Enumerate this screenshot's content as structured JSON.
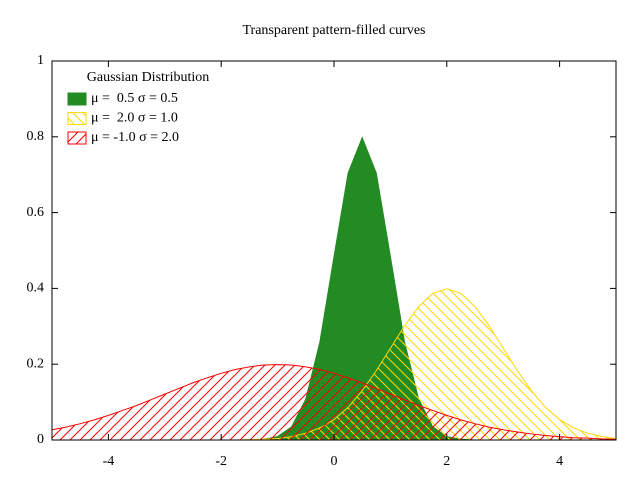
{
  "chart_data": {
    "type": "area",
    "title": "Transparent pattern-filled curves",
    "legend_title": "Gaussian Distribution",
    "legend": "top-left",
    "x": [
      -5,
      -4.75,
      -4.5,
      -4.25,
      -4,
      -3.75,
      -3.5,
      -3.25,
      -3,
      -2.75,
      -2.5,
      -2.25,
      -2,
      -1.75,
      -1.5,
      -1.25,
      -1,
      -0.75,
      -0.5,
      -0.25,
      0,
      0.25,
      0.5,
      0.75,
      1,
      1.25,
      1.5,
      1.75,
      2,
      2.25,
      2.5,
      2.75,
      3,
      3.25,
      3.5,
      3.75,
      4,
      4.25,
      4.5,
      4.75,
      5
    ],
    "series": [
      {
        "name": "μ =  0.5 σ = 0.5",
        "color": "#228b22",
        "fill": "solid",
        "values": [
          0,
          0,
          0,
          0,
          0,
          0,
          0,
          0,
          0,
          0,
          0,
          0,
          0,
          0,
          0,
          0.002,
          0.009,
          0.035,
          0.108,
          0.259,
          0.484,
          0.704,
          0.798,
          0.704,
          0.484,
          0.259,
          0.108,
          0.035,
          0.009,
          0.002,
          0,
          0,
          0,
          0,
          0,
          0,
          0,
          0,
          0,
          0,
          0
        ]
      },
      {
        "name": "μ =  2.0 σ = 1.0",
        "color": "#ffd700",
        "fill": "hatch-back",
        "values": [
          0,
          0,
          0,
          0,
          0,
          0,
          0,
          0,
          0,
          0,
          0,
          0,
          0,
          0,
          0.001,
          0.002,
          0.004,
          0.009,
          0.018,
          0.032,
          0.054,
          0.086,
          0.13,
          0.183,
          0.242,
          0.301,
          0.352,
          0.387,
          0.399,
          0.387,
          0.352,
          0.301,
          0.242,
          0.183,
          0.13,
          0.086,
          0.054,
          0.032,
          0.018,
          0.009,
          0.004
        ]
      },
      {
        "name": "μ = -1.0 σ = 2.0",
        "color": "#ff0000",
        "fill": "hatch-forward",
        "values": [
          0.027,
          0.034,
          0.043,
          0.053,
          0.065,
          0.078,
          0.091,
          0.106,
          0.121,
          0.136,
          0.151,
          0.164,
          0.176,
          0.186,
          0.193,
          0.198,
          0.199,
          0.198,
          0.193,
          0.186,
          0.176,
          0.164,
          0.151,
          0.136,
          0.121,
          0.106,
          0.091,
          0.078,
          0.065,
          0.053,
          0.043,
          0.034,
          0.027,
          0.021,
          0.016,
          0.012,
          0.009,
          0.006,
          0.005,
          0.003,
          0.002
        ]
      }
    ],
    "xlim": [
      -5,
      5
    ],
    "xticks": [
      -4,
      -2,
      0,
      2,
      4
    ],
    "ylim": [
      0,
      1
    ],
    "yticks": [
      0,
      0.2,
      0.4,
      0.6,
      0.8,
      1
    ]
  }
}
